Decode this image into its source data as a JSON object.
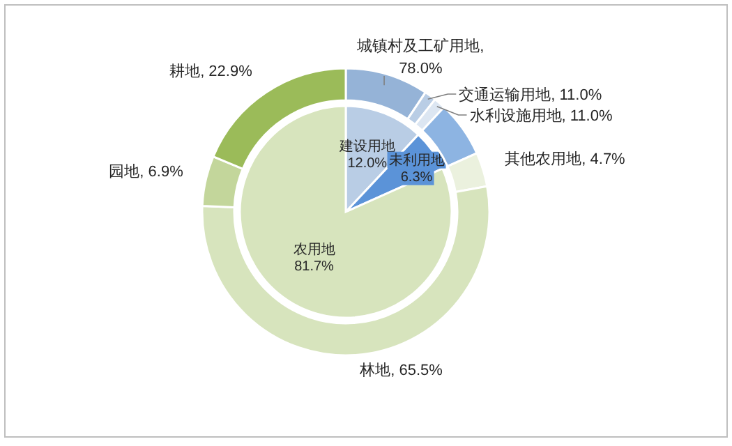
{
  "chart_data": [
    {
      "type": "pie",
      "categories": [
        "建设用地",
        "未利用地",
        "农用地"
      ],
      "values": [
        12.0,
        6.3,
        81.7
      ],
      "value_labels": [
        "12.0%",
        "6.3%",
        "81.7%"
      ],
      "colors": [
        "#b9cde5",
        "#5b93d8",
        "#d7e4bd"
      ]
    },
    {
      "type": "donut",
      "categories": [
        "城镇村及工矿用地, 78.0%",
        "交通运输用地, 11.0%",
        "水利设施用地, 11.0%",
        null,
        "其他农用地, 4.7%",
        "林地, 65.5%",
        "园地, 6.9%",
        "耕地, 22.9%"
      ],
      "values": [
        9.36,
        1.32,
        1.32,
        6.3,
        3.84,
        53.51,
        5.64,
        18.71
      ],
      "colors": [
        "#95b3d7",
        "#b9cde5",
        "#dce6f2",
        "#8db4e2",
        "#ebf1de",
        "#d7e4bd",
        "#c3d69b",
        "#9bbb59"
      ]
    }
  ]
}
